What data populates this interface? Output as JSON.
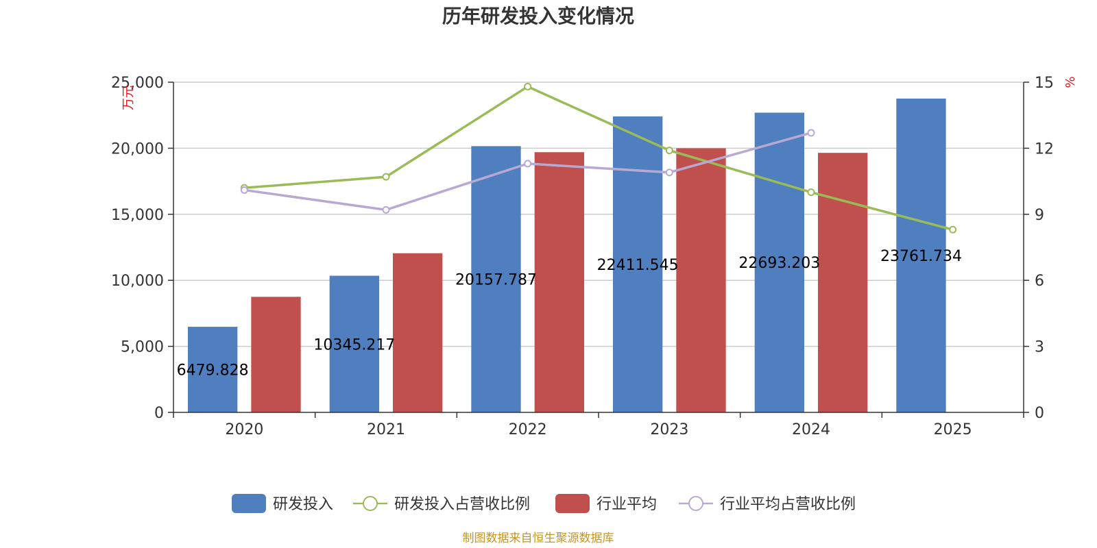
{
  "chart_data": {
    "type": "bar",
    "title": "历年研发投入变化情况",
    "categories": [
      "2020",
      "2021",
      "2022",
      "2023",
      "2024",
      "2025"
    ],
    "y_left": {
      "unit_label": "万元",
      "ticks": [
        "0",
        "5,000",
        "10,000",
        "15,000",
        "20,000",
        "25,000"
      ],
      "ylim": [
        0,
        25000
      ]
    },
    "y_right": {
      "unit_label": "%",
      "ticks": [
        "0",
        "3",
        "6",
        "9",
        "12",
        "15"
      ],
      "ylim": [
        0,
        15
      ]
    },
    "grid": true,
    "legend_position": "bottom",
    "series": [
      {
        "name": "研发投入",
        "kind": "bar",
        "axis": "left",
        "color": "#4f7fbf",
        "values": [
          6479.828,
          10345.217,
          20157.787,
          22411.545,
          22693.203,
          23761.734
        ],
        "data_labels": [
          "6479.828",
          "10345.217",
          "20157.787",
          "22411.545",
          "22693.203",
          "23761.734"
        ]
      },
      {
        "name": "研发投入占营收比例",
        "kind": "line",
        "axis": "right",
        "color": "#9bbb59",
        "values": [
          10.2,
          10.7,
          14.8,
          11.9,
          10.0,
          8.3
        ]
      },
      {
        "name": "行业平均",
        "kind": "bar",
        "axis": "left",
        "color": "#c0504d",
        "values": [
          8750,
          12050,
          19700,
          20000,
          19650,
          null
        ]
      },
      {
        "name": "行业平均占营收比例",
        "kind": "line",
        "axis": "right",
        "color": "#b8a9d3",
        "values": [
          10.1,
          9.2,
          11.3,
          10.9,
          12.7,
          null
        ]
      }
    ],
    "source": "制图数据来自恒生聚源数据库"
  }
}
